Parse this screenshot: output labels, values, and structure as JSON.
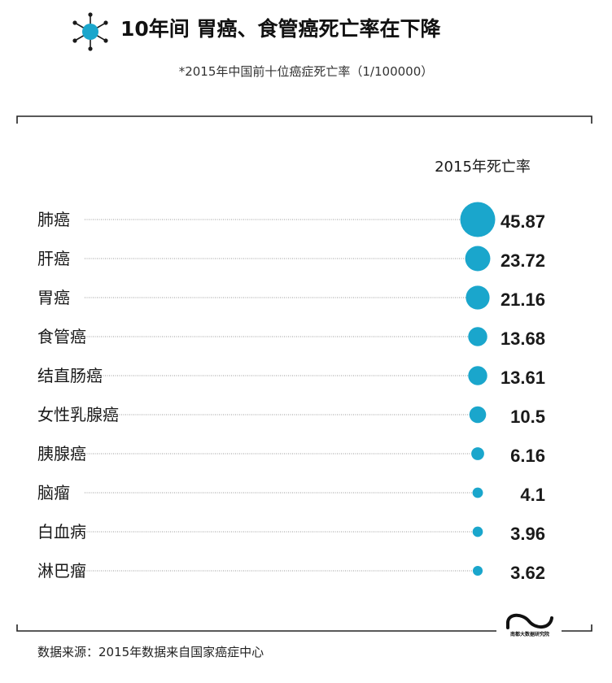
{
  "header": {
    "title": "10年间  胃癌、食管癌死亡率在下降",
    "subtitle": "*2015年中国前十位癌症死亡率（1/100000）",
    "icon": "molecule-icon"
  },
  "colors": {
    "accent": "#1aa6cc",
    "text": "#1a1a1a",
    "frame": "#222222",
    "leader": "#9a9a9a"
  },
  "chart_data": {
    "type": "bubble",
    "column_header": "2015年死亡率",
    "categories": [
      "肺癌",
      "肝癌",
      "胃癌",
      "食管癌",
      "结直肠癌",
      "女性乳腺癌",
      "胰腺癌",
      "脑瘤",
      "白血病",
      "淋巴瘤"
    ],
    "values": [
      45.87,
      23.72,
      21.16,
      13.68,
      13.61,
      10.5,
      6.16,
      4.1,
      3.96,
      3.62
    ],
    "value_labels": [
      "45.87",
      "23.72",
      "21.16",
      "13.68",
      "13.61",
      "10.5",
      "6.16",
      "4.1",
      "3.96",
      "3.62"
    ]
  },
  "footer": {
    "source": "数据来源：2015年数据来自国家癌症中心",
    "brand_icon": "brand-logo-icon",
    "brand_text": "南都大数据研究院"
  }
}
